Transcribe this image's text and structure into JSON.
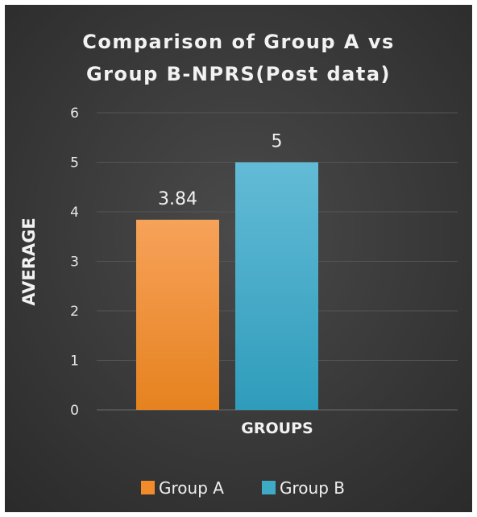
{
  "chart_data": {
    "type": "bar",
    "title_lines": [
      "Comparison of Group A vs",
      "Group B-NPRS(Post data)"
    ],
    "xlabel": "GROUPS",
    "ylabel": "AVERAGE",
    "ylim": [
      0,
      6
    ],
    "yticks": [
      "0",
      "1",
      "2",
      "3",
      "4",
      "5",
      "6"
    ],
    "grid": true,
    "legend_position": "bottom",
    "series": [
      {
        "name": "Group A",
        "value": 3.84,
        "label": "3.84",
        "color": "#F28B2A"
      },
      {
        "name": "Group B",
        "value": 5,
        "label": "5",
        "color": "#3FAAC6"
      }
    ]
  }
}
